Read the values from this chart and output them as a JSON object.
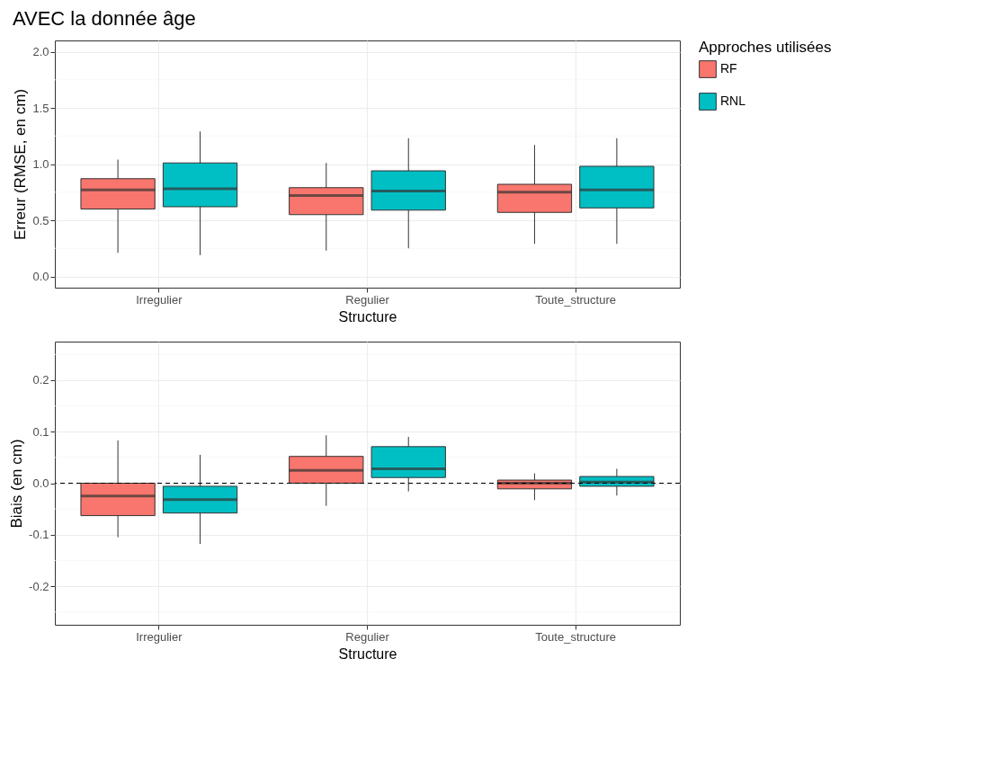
{
  "chart_data": [
    {
      "type": "box",
      "title": "AVEC la donnée âge",
      "xlabel": "Structure",
      "ylabel": "Erreur (RMSE, en cm)",
      "legend_title": "Approches utilisées",
      "legend": "right",
      "grid": true,
      "categories": [
        "Irregulier",
        "Regulier",
        "Toute_structure"
      ],
      "ylim": [
        -0.1,
        2.1
      ],
      "yticks": [
        {
          "value": 0,
          "label": "0.0"
        },
        0.5,
        {
          "value": 1,
          "label": "1.0"
        },
        1.5,
        {
          "value": 2,
          "label": "2.0"
        }
      ],
      "series": [
        {
          "name": "RF",
          "color": "#f8766d",
          "boxes": [
            {
              "low": 0.21,
              "q1": 0.6,
              "median": 0.77,
              "q3": 0.87,
              "high": 1.04
            },
            {
              "low": 0.23,
              "q1": 0.55,
              "median": 0.72,
              "q3": 0.79,
              "high": 1.01
            },
            {
              "low": 0.29,
              "q1": 0.57,
              "median": 0.75,
              "q3": 0.82,
              "high": 1.17
            }
          ]
        },
        {
          "name": "RNL",
          "color": "#00bfc4",
          "boxes": [
            {
              "low": 0.19,
              "q1": 0.62,
              "median": 0.78,
              "q3": 1.01,
              "high": 1.29
            },
            {
              "low": 0.25,
              "q1": 0.59,
              "median": 0.76,
              "q3": 0.94,
              "high": 1.23
            },
            {
              "low": 0.29,
              "q1": 0.61,
              "median": 0.77,
              "q3": 0.98,
              "high": 1.23
            }
          ]
        }
      ]
    },
    {
      "type": "box",
      "xlabel": "Structure",
      "ylabel": "Biais (en cm)",
      "grid": true,
      "categories": [
        "Irregulier",
        "Regulier",
        "Toute_structure"
      ],
      "ylim": [
        -0.275,
        0.275
      ],
      "yticks": [
        -0.2,
        -0.1,
        {
          "value": 0,
          "label": "0.0"
        },
        0.1,
        0.2
      ],
      "ref_lines": [
        {
          "axis": "y",
          "value": 0,
          "color": "#000000",
          "line_style": "dashed"
        }
      ],
      "series": [
        {
          "name": "RF",
          "color": "#f8766d",
          "boxes": [
            {
              "low": -0.105,
              "q1": -0.063,
              "median": -0.025,
              "q3": 0,
              "high": 0.083
            },
            {
              "low": -0.044,
              "q1": 0,
              "median": 0.025,
              "q3": 0.052,
              "high": 0.093
            },
            {
              "low": -0.033,
              "q1": -0.011,
              "median": 0,
              "q3": 0.006,
              "high": 0.019
            }
          ]
        },
        {
          "name": "RNL",
          "color": "#00bfc4",
          "boxes": [
            {
              "low": -0.118,
              "q1": -0.058,
              "median": -0.032,
              "q3": -0.006,
              "high": 0.055
            },
            {
              "low": -0.016,
              "q1": 0.011,
              "median": 0.028,
              "q3": 0.071,
              "high": 0.09
            },
            {
              "low": -0.024,
              "q1": -0.006,
              "median": 0.002,
              "q3": 0.013,
              "high": 0.028
            }
          ]
        }
      ]
    }
  ]
}
